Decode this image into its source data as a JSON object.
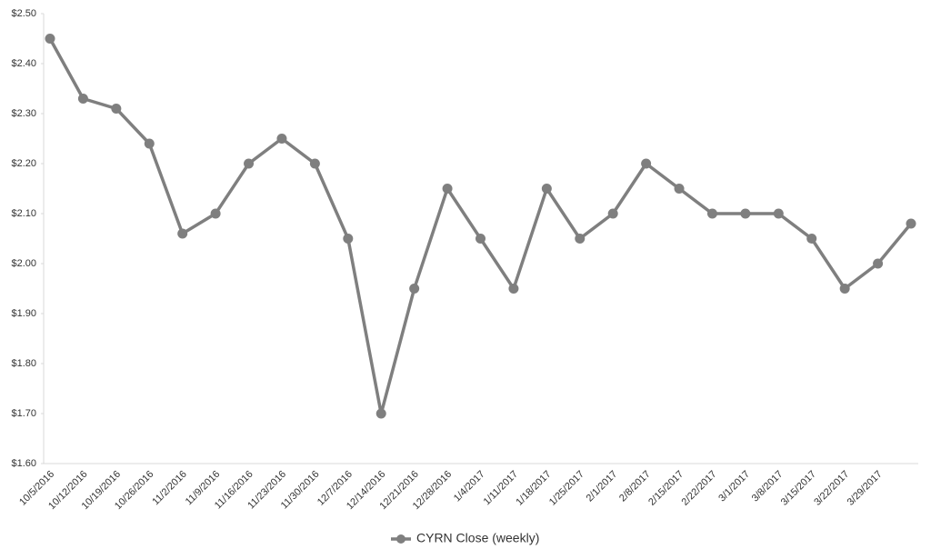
{
  "chart_data": {
    "type": "line",
    "categories": [
      "10/5/2016",
      "10/12/2016",
      "10/19/2016",
      "10/26/2016",
      "11/2/2016",
      "11/9/2016",
      "11/16/2016",
      "11/23/2016",
      "11/30/2016",
      "12/7/2016",
      "12/14/2016",
      "12/21/2016",
      "12/28/2016",
      "1/4/2017",
      "1/11/2017",
      "1/18/2017",
      "1/25/2017",
      "2/1/2017",
      "2/8/2017",
      "2/15/2017",
      "2/22/2017",
      "3/1/2017",
      "3/8/2017",
      "3/15/2017",
      "3/22/2017",
      "3/29/2017",
      null
    ],
    "series": [
      {
        "name": "CYRN Close (weekly)",
        "color": "#7f7f7f",
        "values": [
          2.45,
          2.33,
          2.31,
          2.24,
          2.06,
          2.1,
          2.2,
          2.25,
          2.2,
          2.05,
          1.7,
          1.95,
          2.15,
          2.05,
          1.95,
          2.15,
          2.05,
          2.1,
          2.2,
          2.15,
          2.1,
          2.1,
          2.1,
          2.05,
          1.95,
          2.0,
          2.08
        ]
      }
    ],
    "ylim": [
      1.6,
      2.5
    ],
    "yticks": [
      {
        "value": 1.6,
        "label": "$1.60"
      },
      {
        "value": 1.7,
        "label": "$1.70"
      },
      {
        "value": 1.8,
        "label": "$1.80"
      },
      {
        "value": 1.9,
        "label": "$1.90"
      },
      {
        "value": 2.0,
        "label": "$2.00"
      },
      {
        "value": 2.1,
        "label": "$2.10"
      },
      {
        "value": 2.2,
        "label": "$2.20"
      },
      {
        "value": 2.3,
        "label": "$2.30"
      },
      {
        "value": 2.4,
        "label": "$2.40"
      },
      {
        "value": 2.5,
        "label": "$2.50"
      }
    ],
    "grid": false,
    "legend": "bottom"
  }
}
